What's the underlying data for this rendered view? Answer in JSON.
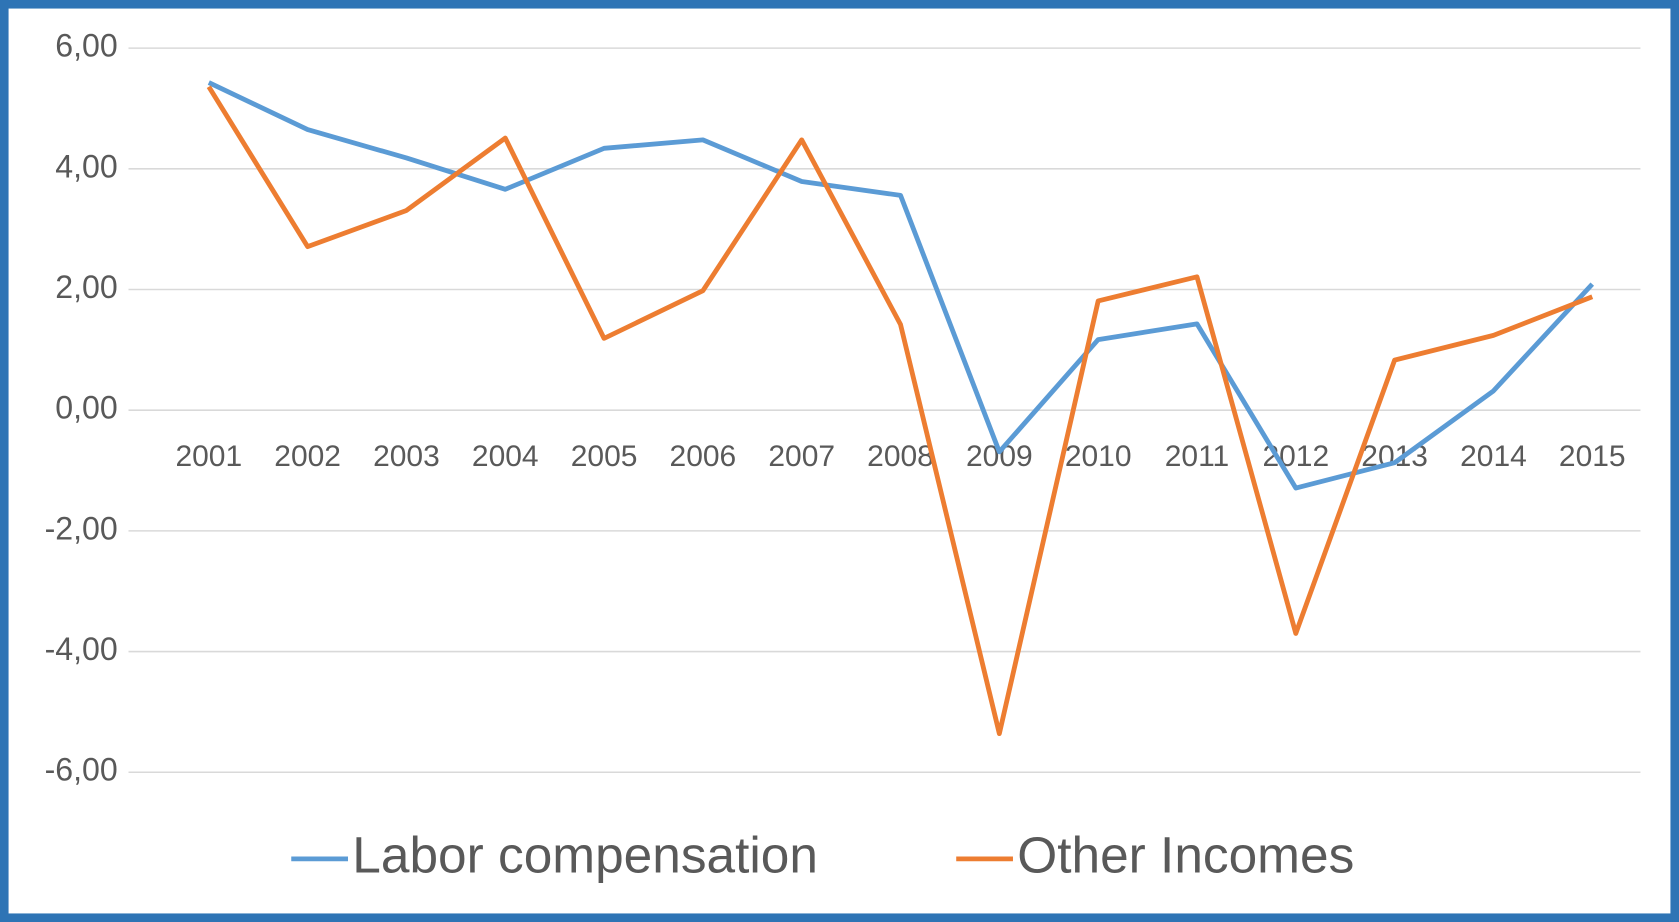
{
  "chart_data": {
    "type": "line",
    "categories": [
      "2001",
      "2002",
      "2003",
      "2004",
      "2005",
      "2006",
      "2007",
      "2008",
      "2009",
      "2010",
      "2011",
      "2012",
      "2013",
      "2014",
      "2015"
    ],
    "series": [
      {
        "name": "Labor compensation",
        "color": "#5b9bd5",
        "values": [
          5.43,
          4.65,
          4.18,
          3.66,
          4.34,
          4.48,
          3.79,
          3.56,
          -0.69,
          1.17,
          1.43,
          -1.29,
          -0.87,
          0.32,
          2.09
        ]
      },
      {
        "name": "Other Incomes",
        "color": "#ed7d31",
        "values": [
          5.36,
          2.71,
          3.31,
          4.51,
          1.19,
          1.98,
          4.48,
          1.42,
          -5.36,
          1.81,
          2.21,
          -3.7,
          0.83,
          1.24,
          1.88
        ]
      }
    ],
    "ylim": [
      -6,
      6
    ],
    "yticks": [
      {
        "value": -6,
        "label": "-6,00"
      },
      {
        "value": -4,
        "label": "-4,00"
      },
      {
        "value": -2,
        "label": "-2,00"
      },
      {
        "value": 0,
        "label": "0,00"
      },
      {
        "value": 2,
        "label": "2,00"
      },
      {
        "value": 4,
        "label": "4,00"
      },
      {
        "value": 6,
        "label": "6,00"
      }
    ],
    "grid": true,
    "legend": "bottom",
    "border_color": "#2e74b5"
  }
}
